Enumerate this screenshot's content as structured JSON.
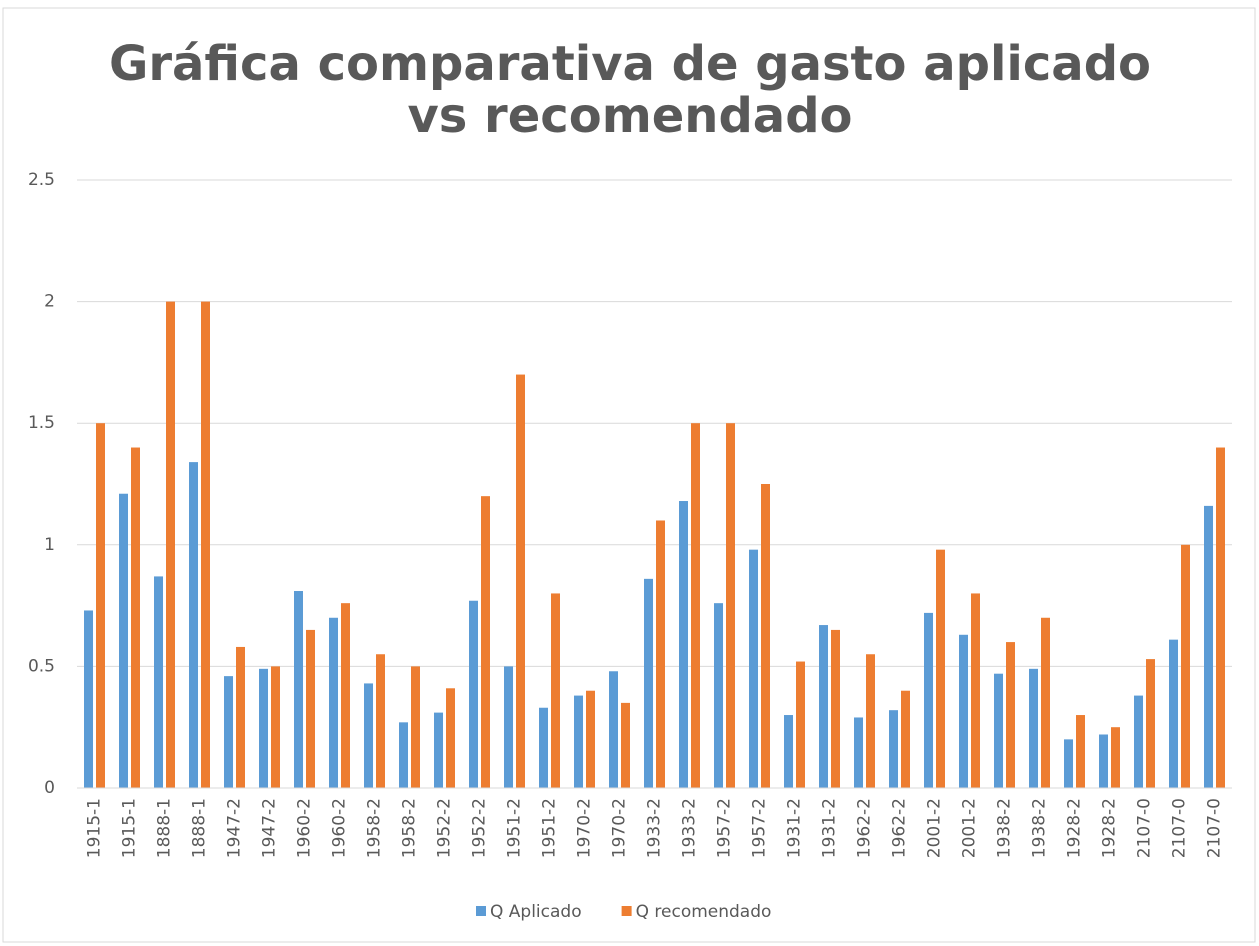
{
  "chart_data": {
    "type": "bar",
    "title": "Gráfica comparativa de gasto aplicado vs recomendado",
    "categories": [
      "1915-1",
      "1915-1",
      "1888-1",
      "1888-1",
      "1947-2",
      "1947-2",
      "1960-2",
      "1960-2",
      "1958-2",
      "1958-2",
      "1952-2",
      "1952-2",
      "1951-2",
      "1951-2",
      "1970-2",
      "1970-2",
      "1933-2",
      "1933-2",
      "1957-2",
      "1957-2",
      "1931-2",
      "1931-2",
      "1962-2",
      "1962-2",
      "2001-2",
      "2001-2",
      "1938-2",
      "1938-2",
      "1928-2",
      "1928-2",
      "2107-0",
      "2107-0",
      "2107-0"
    ],
    "series": [
      {
        "name": "Q Aplicado",
        "color": "#5b9bd5",
        "values": [
          0.73,
          1.21,
          0.87,
          1.34,
          0.46,
          0.49,
          0.81,
          0.7,
          0.43,
          0.27,
          0.31,
          0.77,
          0.5,
          0.33,
          0.38,
          0.48,
          0.86,
          1.18,
          0.76,
          0.98,
          0.3,
          0.67,
          0.29,
          0.32,
          0.72,
          0.63,
          0.47,
          0.49,
          0.2,
          0.22,
          0.38,
          0.61,
          1.16
        ]
      },
      {
        "name": "Q recomendado",
        "color": "#ed7d31",
        "values": [
          1.5,
          1.4,
          2.0,
          2.0,
          0.58,
          0.5,
          0.65,
          0.76,
          0.55,
          0.5,
          0.41,
          1.2,
          1.7,
          0.8,
          0.4,
          0.35,
          1.1,
          1.5,
          1.5,
          1.25,
          0.52,
          0.65,
          0.55,
          0.4,
          0.98,
          0.8,
          0.6,
          0.7,
          0.3,
          0.25,
          0.53,
          1.0,
          1.4
        ]
      }
    ],
    "ylim": [
      0,
      2.5
    ],
    "yticks": [
      0,
      0.5,
      1,
      1.5,
      2,
      2.5
    ],
    "grid": true,
    "legend": "bottom"
  }
}
